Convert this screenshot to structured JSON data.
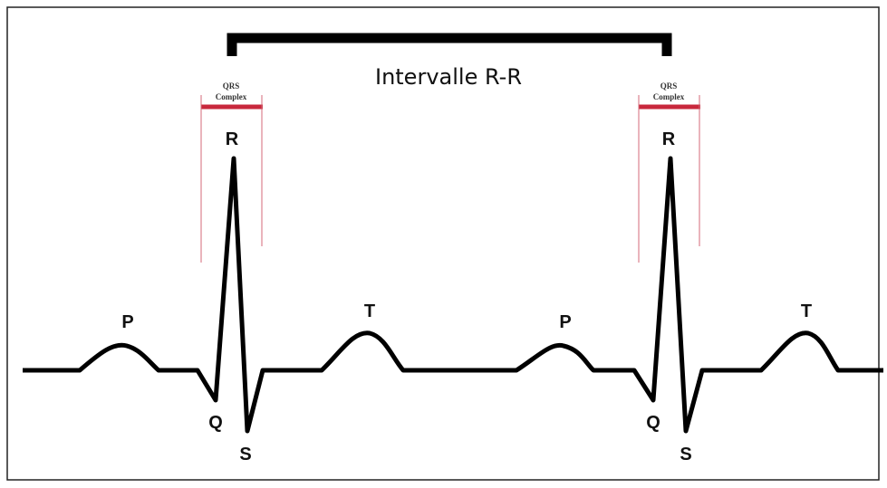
{
  "interval_label": "Intervalle R-R",
  "beats": [
    {
      "qrs_label": {
        "line1": "QRS",
        "line2": "Complex"
      },
      "p": "P",
      "q": "Q",
      "r": "R",
      "s": "S",
      "t": "T"
    },
    {
      "qrs_label": {
        "line1": "QRS",
        "line2": "Complex"
      },
      "p": "P",
      "q": "Q",
      "r": "R",
      "s": "S",
      "t": "T"
    }
  ]
}
